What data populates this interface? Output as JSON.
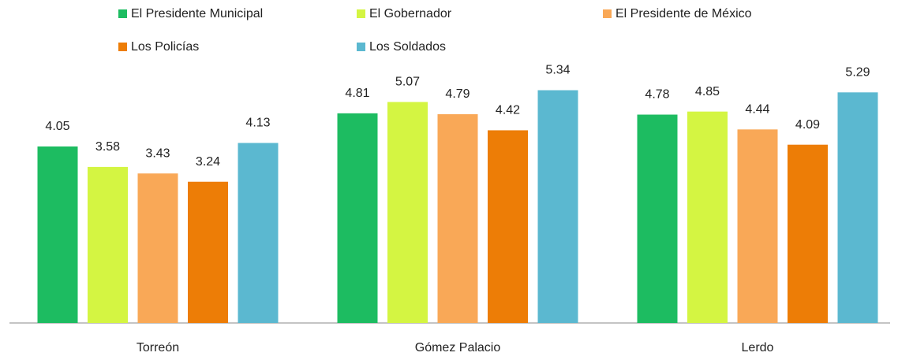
{
  "chart_data": {
    "type": "bar",
    "categories": [
      "Torreón",
      "Gómez Palacio",
      "Lerdo"
    ],
    "series": [
      {
        "name": "El Presidente Municipal",
        "color": "#1dbc61",
        "values": [
          4.05,
          4.81,
          4.78
        ]
      },
      {
        "name": "El Gobernador",
        "color": "#d4f542",
        "values": [
          3.58,
          5.07,
          4.85
        ]
      },
      {
        "name": "El Presidente de México",
        "color": "#f9a857",
        "values": [
          3.43,
          4.79,
          4.44
        ]
      },
      {
        "name": "Los Policías",
        "color": "#ed7d06",
        "values": [
          3.24,
          4.42,
          4.09
        ]
      },
      {
        "name": "Los Soldados",
        "color": "#5bb8d0",
        "values": [
          4.13,
          5.34,
          5.29
        ]
      }
    ],
    "ylim": [
      0,
      6
    ]
  }
}
